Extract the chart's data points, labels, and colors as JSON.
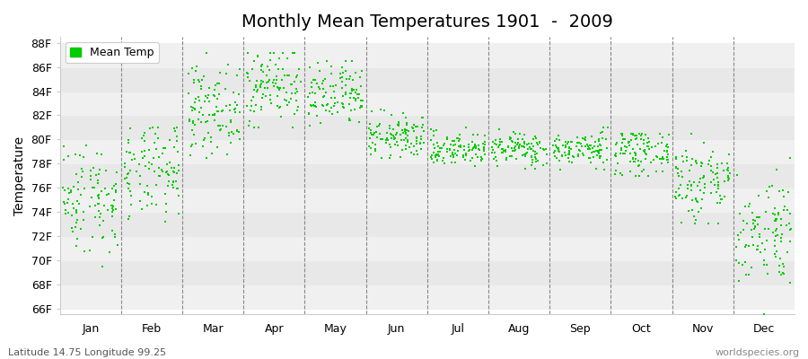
{
  "title": "Monthly Mean Temperatures 1901  -  2009",
  "ylabel": "Temperature",
  "xlabel_labels": [
    "Jan",
    "Feb",
    "Mar",
    "Apr",
    "May",
    "Jun",
    "Jul",
    "Aug",
    "Sep",
    "Oct",
    "Nov",
    "Dec"
  ],
  "ytick_labels": [
    "66F",
    "68F",
    "70F",
    "72F",
    "74F",
    "76F",
    "78F",
    "80F",
    "82F",
    "84F",
    "86F",
    "88F"
  ],
  "ytick_values": [
    66,
    68,
    70,
    72,
    74,
    76,
    78,
    80,
    82,
    84,
    86,
    88
  ],
  "ylim": [
    65.5,
    88.5
  ],
  "dot_color": "#00cc00",
  "bg_color": "#ffffff",
  "band_color_light": "#f0f0f0",
  "band_color_dark": "#e8e8e8",
  "legend_label": "Mean Temp",
  "footer_left": "Latitude 14.75 Longitude 99.25",
  "footer_right": "worldspecies.org",
  "title_fontsize": 14,
  "monthly_means": [
    75.2,
    77.2,
    82.5,
    84.5,
    83.5,
    80.2,
    79.2,
    79.2,
    79.2,
    79.0,
    76.5,
    72.5
  ],
  "monthly_std": [
    2.3,
    2.0,
    1.8,
    1.6,
    1.4,
    0.9,
    0.7,
    0.7,
    0.7,
    0.9,
    1.8,
    2.3
  ],
  "monthly_min": [
    69.5,
    69.5,
    78.5,
    81.0,
    80.5,
    78.5,
    77.5,
    77.5,
    77.5,
    77.0,
    73.0,
    65.5
  ],
  "monthly_max": [
    80.5,
    81.0,
    87.2,
    87.2,
    86.5,
    82.5,
    81.0,
    81.0,
    81.0,
    80.5,
    80.5,
    78.5
  ],
  "n_years": 109,
  "seed": 42
}
